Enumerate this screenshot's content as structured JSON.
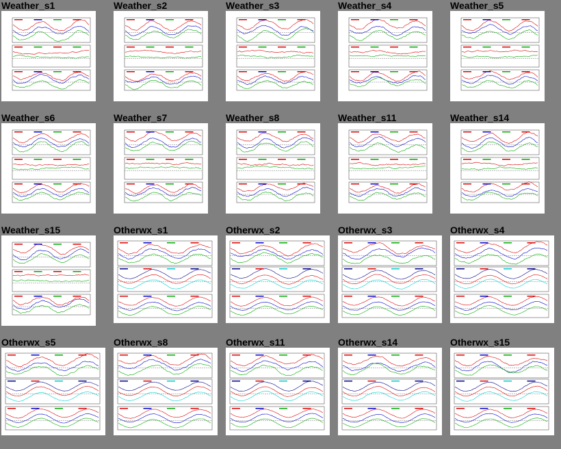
{
  "cells": [
    {
      "title": "Weather_s1"
    },
    {
      "title": "Weather_s2"
    },
    {
      "title": "Weather_s3"
    },
    {
      "title": "Weather_s4"
    },
    {
      "title": "Weather_s5"
    },
    {
      "title": "Weather_s6"
    },
    {
      "title": "Weather_s7"
    },
    {
      "title": "Weather_s8"
    },
    {
      "title": "Weather_s11"
    },
    {
      "title": "Weather_s14"
    },
    {
      "title": "Weather_s15"
    },
    {
      "title": "Otherwx_s1"
    },
    {
      "title": "Otherwx_s2"
    },
    {
      "title": "Otherwx_s3"
    },
    {
      "title": "Otherwx_s4"
    },
    {
      "title": "Otherwx_s5"
    },
    {
      "title": "Otherwx_s8"
    },
    {
      "title": "Otherwx_s11"
    },
    {
      "title": "Otherwx_s14"
    },
    {
      "title": "Otherwx_s15"
    }
  ]
}
